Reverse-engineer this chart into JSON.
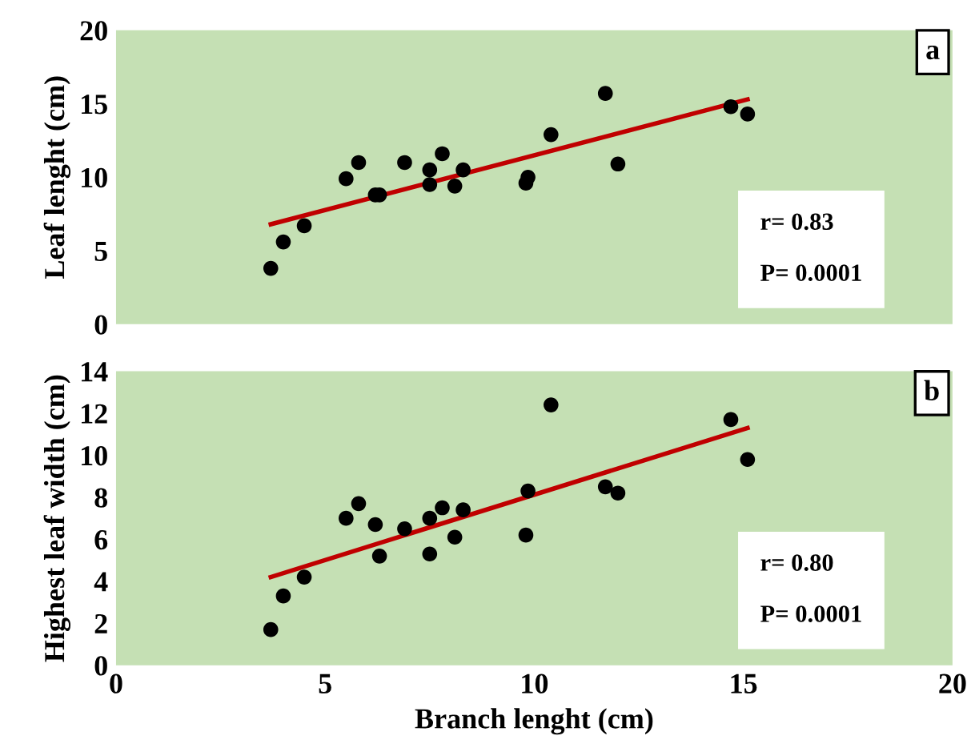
{
  "chart_data": [
    {
      "type": "scatter",
      "ylabel": "Leaf lenght (cm)",
      "xlim": [
        0,
        20
      ],
      "xticks": [
        0,
        5,
        10,
        15,
        20
      ],
      "ylim": [
        0,
        20
      ],
      "yticks": [
        0,
        5,
        10,
        15,
        20
      ],
      "tick_labels": "y",
      "grid": false,
      "legend": false,
      "marker": "circle",
      "annotations": [
        "a",
        "r= 0.83\n\nP= 0.0001"
      ],
      "series": [
        {
          "color": "#000000",
          "x": [
            3.7,
            4.0,
            4.5,
            5.5,
            5.8,
            6.2,
            6.3,
            6.9,
            7.5,
            7.5,
            7.8,
            8.1,
            8.3,
            9.8,
            9.85,
            10.4,
            11.7,
            12.0,
            14.7,
            15.1
          ],
          "values": [
            3.8,
            5.6,
            6.7,
            9.9,
            11.0,
            8.8,
            8.8,
            11.0,
            9.5,
            10.5,
            11.6,
            9.4,
            10.5,
            9.6,
            10.0,
            12.9,
            15.7,
            10.9,
            14.8,
            14.3
          ]
        },
        {
          "type": "line",
          "marker": "none",
          "color": "#c00000",
          "x": [
            3.7,
            15.1
          ],
          "values": [
            6.8,
            15.3
          ]
        }
      ]
    },
    {
      "type": "scatter",
      "xlabel": "Branch lenght (cm)",
      "ylabel": "Highest leaf width (cm)",
      "xlim": [
        0,
        20
      ],
      "xticks": [
        0,
        5,
        10,
        15,
        20
      ],
      "ylim": [
        0,
        14
      ],
      "yticks": [
        0,
        2,
        4,
        6,
        8,
        10,
        12,
        14
      ],
      "grid": false,
      "legend": false,
      "marker": "circle",
      "annotations": [
        "b",
        "r= 0.80\n\nP= 0.0001"
      ],
      "series": [
        {
          "color": "#000000",
          "x": [
            3.7,
            4.0,
            4.5,
            5.5,
            5.8,
            6.2,
            6.3,
            6.9,
            7.5,
            7.5,
            7.8,
            8.1,
            8.3,
            9.8,
            9.85,
            10.4,
            11.7,
            12.0,
            14.7,
            15.1
          ],
          "values": [
            1.7,
            3.3,
            4.2,
            7.0,
            7.7,
            6.7,
            5.2,
            6.5,
            5.3,
            7.0,
            7.5,
            6.1,
            7.4,
            6.2,
            8.3,
            12.4,
            8.5,
            8.2,
            11.7,
            9.8
          ]
        },
        {
          "type": "line",
          "marker": "none",
          "color": "#c00000",
          "x": [
            3.7,
            15.1
          ],
          "values": [
            4.2,
            11.3
          ]
        }
      ]
    }
  ]
}
